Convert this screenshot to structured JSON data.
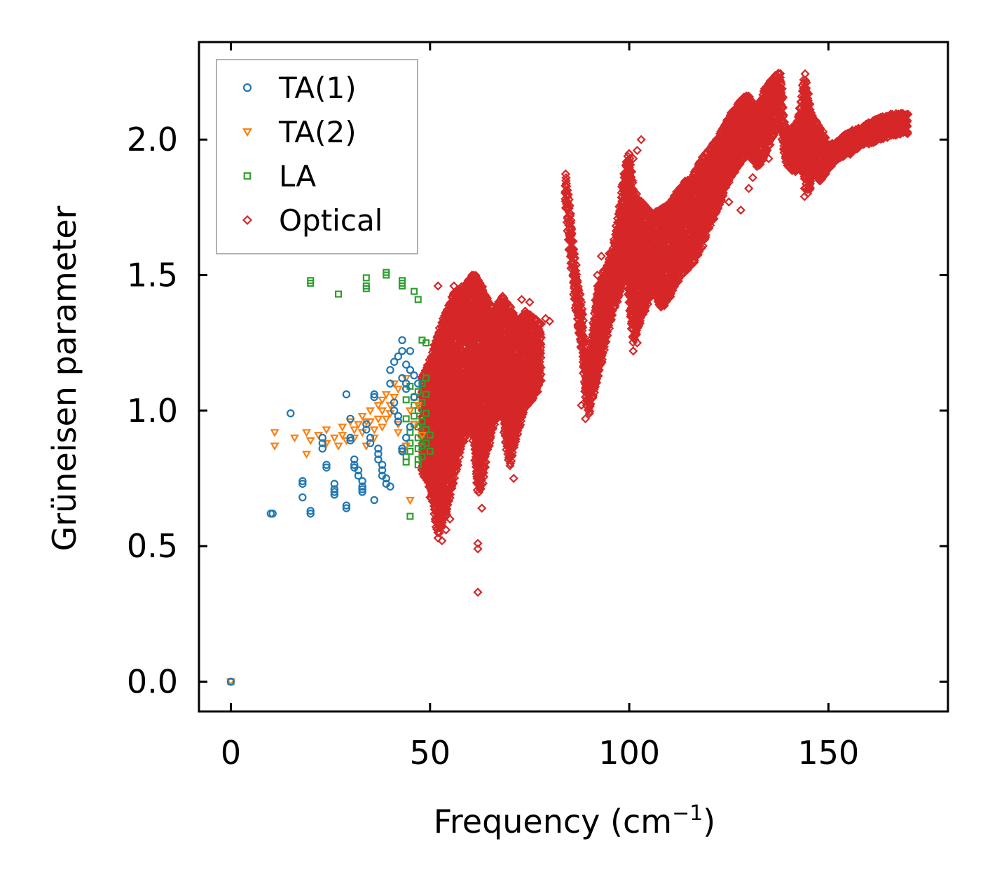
{
  "chart_data": {
    "type": "scatter",
    "title": "",
    "xlabel": "Frequency (cm",
    "xlabel_sup": "−1",
    "xlabel_end": ")",
    "ylabel": "Grüneisen parameter",
    "xlim": [
      -8,
      180
    ],
    "ylim": [
      -0.11,
      2.36
    ],
    "xticks": [
      0,
      50,
      100,
      150
    ],
    "xtick_labels": [
      "0",
      "50",
      "100",
      "150"
    ],
    "yticks": [
      0.0,
      0.5,
      1.0,
      1.5,
      2.0
    ],
    "ytick_labels": [
      "0.0",
      "0.5",
      "1.0",
      "1.5",
      "2.0"
    ],
    "legend_position": "upper left",
    "series": [
      {
        "name": "TA(1)",
        "marker": "circle",
        "color": "#1f77b4",
        "points": [
          [
            0,
            0
          ],
          [
            10,
            0.62
          ],
          [
            10.5,
            0.62
          ],
          [
            15,
            0.99
          ],
          [
            18,
            0.74
          ],
          [
            18,
            0.73
          ],
          [
            18,
            0.68
          ],
          [
            20,
            0.63
          ],
          [
            20,
            0.62
          ],
          [
            23,
            0.9
          ],
          [
            23,
            0.88
          ],
          [
            23,
            0.86
          ],
          [
            24,
            0.8
          ],
          [
            24,
            0.79
          ],
          [
            26,
            0.73
          ],
          [
            26,
            0.71
          ],
          [
            26,
            0.7
          ],
          [
            26,
            0.69
          ],
          [
            29,
            0.65
          ],
          [
            29,
            0.64
          ],
          [
            29,
            1.06
          ],
          [
            30,
            0.9
          ],
          [
            30,
            0.89
          ],
          [
            30,
            0.97
          ],
          [
            31,
            0.82
          ],
          [
            31,
            0.8
          ],
          [
            31,
            0.79
          ],
          [
            32,
            0.78
          ],
          [
            32,
            0.76
          ],
          [
            33,
            0.74
          ],
          [
            33,
            0.72
          ],
          [
            33,
            0.71
          ],
          [
            33,
            0.7
          ],
          [
            34,
            0.95
          ],
          [
            34,
            0.93
          ],
          [
            35,
            0.9
          ],
          [
            35,
            0.88
          ],
          [
            36,
            1.06
          ],
          [
            36,
            1.05
          ],
          [
            36,
            0.67
          ],
          [
            37,
            0.86
          ],
          [
            37,
            0.84
          ],
          [
            37,
            0.82
          ],
          [
            38,
            0.8
          ],
          [
            38,
            0.78
          ],
          [
            38,
            0.76
          ],
          [
            39,
            0.75
          ],
          [
            39,
            0.73
          ],
          [
            40,
            0.72
          ],
          [
            40,
            1.1
          ],
          [
            40,
            1.15
          ],
          [
            41,
            1.18
          ],
          [
            41,
            1.03
          ],
          [
            41,
            1.0
          ],
          [
            42,
            0.98
          ],
          [
            42,
            0.96
          ],
          [
            42,
            1.2
          ],
          [
            43,
            1.22
          ],
          [
            43,
            1.26
          ],
          [
            43,
            1.12
          ],
          [
            44,
            1.1
          ],
          [
            44,
            1.08
          ],
          [
            44,
            1.17
          ],
          [
            45,
            1.15
          ],
          [
            45,
            1.22
          ],
          [
            45,
            0.94
          ],
          [
            46,
            1.05
          ],
          [
            46,
            1.13
          ],
          [
            47,
            1.1
          ],
          [
            43,
            0.85
          ],
          [
            43,
            0.86
          ],
          [
            44,
            0.9
          ]
        ]
      },
      {
        "name": "TA(2)",
        "marker": "triangle-down",
        "color": "#ff7f0e",
        "points": [
          [
            0,
            0
          ],
          [
            11,
            0.92
          ],
          [
            11,
            0.87
          ],
          [
            16,
            0.9
          ],
          [
            19,
            0.92
          ],
          [
            19,
            0.84
          ],
          [
            20,
            0.89
          ],
          [
            22,
            0.91
          ],
          [
            24,
            0.93
          ],
          [
            24,
            0.88
          ],
          [
            26,
            0.9
          ],
          [
            27,
            0.87
          ],
          [
            28,
            0.94
          ],
          [
            28,
            0.91
          ],
          [
            29,
            0.89
          ],
          [
            30,
            0.96
          ],
          [
            31,
            0.93
          ],
          [
            31,
            0.9
          ],
          [
            32,
            0.95
          ],
          [
            33,
            0.98
          ],
          [
            33,
            0.92
          ],
          [
            34,
            0.96
          ],
          [
            34,
            0.87
          ],
          [
            35,
            1.0
          ],
          [
            35,
            0.96
          ],
          [
            36,
            0.93
          ],
          [
            36,
            0.9
          ],
          [
            37,
            1.02
          ],
          [
            37,
            0.97
          ],
          [
            38,
            0.94
          ],
          [
            38,
            1.04
          ],
          [
            38,
            1.0
          ],
          [
            39,
            0.97
          ],
          [
            39,
            1.06
          ],
          [
            40,
            1.02
          ],
          [
            40,
            0.99
          ],
          [
            41,
            1.05
          ],
          [
            41,
            1.1
          ],
          [
            42,
            1.08
          ],
          [
            42,
            0.95
          ],
          [
            42,
            0.92
          ],
          [
            43,
            0.85
          ],
          [
            44,
            0.87
          ],
          [
            44,
            1.12
          ],
          [
            45,
            1.0
          ],
          [
            45,
            0.67
          ],
          [
            46,
            0.95
          ],
          [
            47,
            1.02
          ],
          [
            48,
            0.91
          ]
        ]
      },
      {
        "name": "LA",
        "marker": "square",
        "color": "#2ca02c",
        "points": [
          [
            0,
            0
          ],
          [
            20,
            1.48
          ],
          [
            20,
            1.47
          ],
          [
            27,
            1.43
          ],
          [
            34,
            1.49
          ],
          [
            34,
            1.46
          ],
          [
            34,
            1.45
          ],
          [
            39,
            1.51
          ],
          [
            39,
            1.5
          ],
          [
            43,
            1.48
          ],
          [
            43,
            1.47
          ],
          [
            43,
            1.46
          ],
          [
            46,
            1.44
          ],
          [
            47,
            1.41
          ],
          [
            48,
            1.26
          ],
          [
            49,
            1.25
          ],
          [
            45,
            0.61
          ],
          [
            44,
            0.81
          ],
          [
            44,
            0.83
          ],
          [
            45,
            0.85
          ],
          [
            45,
            0.88
          ],
          [
            45,
            0.92
          ],
          [
            46,
            0.95
          ],
          [
            46,
            0.98
          ],
          [
            46,
            1.02
          ],
          [
            46,
            1.05
          ],
          [
            47,
            0.8
          ],
          [
            47,
            0.82
          ],
          [
            47,
            0.86
          ],
          [
            47,
            0.9
          ],
          [
            47,
            0.94
          ],
          [
            47,
            1.0
          ],
          [
            47,
            1.07
          ],
          [
            48,
            0.83
          ],
          [
            48,
            0.87
          ],
          [
            48,
            0.91
          ],
          [
            48,
            0.96
          ],
          [
            48,
            1.03
          ],
          [
            48,
            1.1
          ],
          [
            49,
            0.88
          ],
          [
            49,
            0.93
          ],
          [
            49,
            0.99
          ],
          [
            49,
            1.06
          ],
          [
            49,
            1.12
          ],
          [
            50,
            0.91
          ],
          [
            50,
            0.85
          ],
          [
            44,
            0.97
          ],
          [
            44,
            1.04
          ],
          [
            45,
            1.09
          ]
        ]
      },
      {
        "name": "Optical",
        "marker": "diamond",
        "color": "#d62728",
        "band": [
          [
            48,
            0.78,
            1.12
          ],
          [
            50,
            0.72,
            1.18
          ],
          [
            52,
            0.55,
            1.28
          ],
          [
            54,
            0.62,
            1.36
          ],
          [
            56,
            0.75,
            1.43
          ],
          [
            58,
            0.88,
            1.45
          ],
          [
            60,
            0.95,
            1.48
          ],
          [
            61,
            0.88,
            1.5
          ],
          [
            62,
            0.7,
            1.48
          ],
          [
            63,
            0.72,
            1.45
          ],
          [
            64,
            0.83,
            1.42
          ],
          [
            66,
            0.95,
            1.36
          ],
          [
            68,
            1.02,
            1.42
          ],
          [
            69,
            0.88,
            1.4
          ],
          [
            70,
            0.8,
            1.38
          ],
          [
            72,
            0.92,
            1.32
          ],
          [
            74,
            1.02,
            1.36
          ],
          [
            76,
            1.05,
            1.34
          ],
          [
            78,
            1.12,
            1.31
          ],
          [
            84,
            1.78,
            1.88
          ],
          [
            85,
            1.6,
            1.75
          ],
          [
            86,
            1.45,
            1.6
          ],
          [
            87,
            1.32,
            1.48
          ],
          [
            88,
            1.24,
            1.38
          ],
          [
            89,
            1.05,
            1.22
          ],
          [
            90,
            1.0,
            1.2
          ],
          [
            92,
            1.12,
            1.45
          ],
          [
            94,
            1.25,
            1.52
          ],
          [
            96,
            1.38,
            1.6
          ],
          [
            98,
            1.45,
            1.78
          ],
          [
            99,
            1.55,
            1.9
          ],
          [
            100,
            1.4,
            1.95
          ],
          [
            101,
            1.25,
            1.82
          ],
          [
            102,
            1.3,
            1.78
          ],
          [
            104,
            1.38,
            1.75
          ],
          [
            106,
            1.45,
            1.72
          ],
          [
            108,
            1.38,
            1.74
          ],
          [
            110,
            1.42,
            1.76
          ],
          [
            112,
            1.48,
            1.8
          ],
          [
            114,
            1.52,
            1.84
          ],
          [
            116,
            1.55,
            1.86
          ],
          [
            118,
            1.6,
            1.92
          ],
          [
            120,
            1.68,
            1.96
          ],
          [
            122,
            1.74,
            2.0
          ],
          [
            124,
            1.82,
            2.05
          ],
          [
            126,
            1.88,
            2.1
          ],
          [
            128,
            1.92,
            2.14
          ],
          [
            130,
            1.96,
            2.16
          ],
          [
            132,
            1.9,
            2.1
          ],
          [
            134,
            1.94,
            2.18
          ],
          [
            136,
            2.02,
            2.22
          ],
          [
            138,
            2.06,
            2.25
          ],
          [
            139,
            1.95,
            2.05
          ],
          [
            140,
            1.9,
            2.03
          ],
          [
            142,
            1.88,
            2.05
          ],
          [
            143,
            1.9,
            2.12
          ],
          [
            144,
            1.86,
            2.24
          ],
          [
            145,
            1.8,
            2.15
          ],
          [
            146,
            1.88,
            2.08
          ],
          [
            148,
            1.85,
            2.04
          ],
          [
            150,
            1.9,
            1.97
          ],
          [
            152,
            1.93,
            1.99
          ],
          [
            155,
            1.95,
            2.02
          ],
          [
            158,
            1.98,
            2.04
          ],
          [
            162,
            2.0,
            2.07
          ],
          [
            166,
            2.02,
            2.09
          ],
          [
            170,
            2.03,
            2.09
          ]
        ],
        "points": [
          [
            62,
            0.33
          ],
          [
            62,
            0.49
          ],
          [
            62,
            0.51
          ],
          [
            63,
            0.64
          ],
          [
            52,
            0.53
          ],
          [
            53,
            0.52
          ],
          [
            54,
            0.56
          ],
          [
            55,
            0.6
          ],
          [
            51,
            0.73
          ],
          [
            50,
            0.68
          ],
          [
            71,
            0.75
          ],
          [
            73,
            1.41
          ],
          [
            75,
            1.4
          ],
          [
            79,
            1.34
          ],
          [
            80,
            1.33
          ],
          [
            77,
            1.07
          ],
          [
            76,
            1.06
          ],
          [
            89,
            0.97
          ],
          [
            90,
            0.99
          ],
          [
            88,
            1.02
          ],
          [
            89,
            1.05
          ],
          [
            92,
            1.5
          ],
          [
            93,
            1.57
          ],
          [
            95,
            1.58
          ],
          [
            101,
            1.22
          ],
          [
            102,
            1.25
          ],
          [
            103,
            2.0
          ],
          [
            101,
            1.93
          ],
          [
            102,
            1.96
          ],
          [
            100,
            1.88
          ],
          [
            100,
            1.4
          ],
          [
            128,
            1.74
          ],
          [
            130,
            1.82
          ],
          [
            125,
            1.77
          ],
          [
            131,
            1.86
          ],
          [
            132,
            1.98
          ],
          [
            135,
            1.93
          ],
          [
            136,
            2.04
          ],
          [
            144,
            1.79
          ],
          [
            144,
            1.82
          ],
          [
            160,
            2.01
          ],
          [
            168,
            2.02
          ],
          [
            56,
            1.46
          ],
          [
            52,
            1.46
          ]
        ]
      }
    ]
  }
}
